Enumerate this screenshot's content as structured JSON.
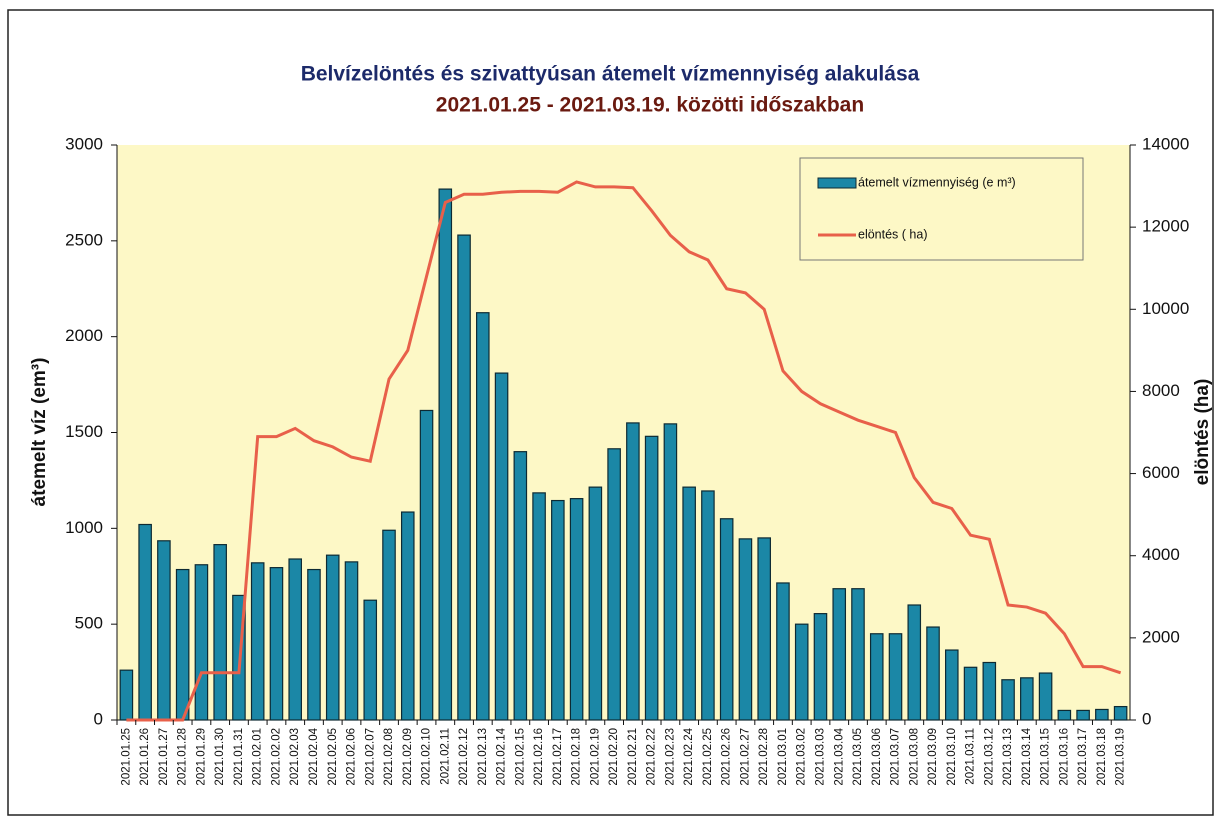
{
  "chart_data": {
    "type": "bar",
    "title": "Belvízelöntés és szivattyúsan átemelt vízmennyiség alakulása",
    "subtitle": "2021.01.25  - 2021.03.19.  közötti időszakban",
    "ylabel": "átemelt víz (em³)",
    "y2label": "elöntés (ha)",
    "categories": [
      "2021.01.25",
      "2021.01.26",
      "2021.01.27",
      "2021.01.28",
      "2021.01.29",
      "2021.01.30",
      "2021.01.31",
      "2021.02.01",
      "2021.02.02",
      "2021.02.03",
      "2021.02.04",
      "2021.02.05",
      "2021.02.06",
      "2021.02.07",
      "2021.02.08",
      "2021.02.09",
      "2021.02.10",
      "2021.02.11",
      "2021.02.12",
      "2021.02.13",
      "2021.02.14",
      "2021.02.15",
      "2021.02.16",
      "2021.02.17",
      "2021.02.18",
      "2021.02.19",
      "2021.02.20",
      "2021.02.21",
      "2021.02.22",
      "2021.02.23",
      "2021.02.24",
      "2021.02.25",
      "2021.02.26",
      "2021.02.27",
      "2021.02.28",
      "2021.03.01",
      "2021.03.02",
      "2021.03.03",
      "2021.03.04",
      "2021.03.05",
      "2021.03.06",
      "2021.03.07",
      "2021.03.08",
      "2021.03.09",
      "2021.03.10",
      "2021.03.11",
      "2021.03.12",
      "2021.03.13",
      "2021.03.14",
      "2021.03.15",
      "2021.03.16",
      "2021.03.17",
      "2021.03.18",
      "2021.03.19"
    ],
    "series": [
      {
        "name": "átemelt vízmennyiség (e m³)",
        "type": "bar",
        "color": "#1b87a6",
        "values": [
          260,
          1020,
          935,
          785,
          810,
          915,
          650,
          820,
          795,
          840,
          785,
          860,
          825,
          625,
          990,
          1085,
          1615,
          2770,
          2530,
          2125,
          1810,
          1400,
          1185,
          1145,
          1155,
          1215,
          1415,
          1550,
          1480,
          1545,
          1215,
          1195,
          1050,
          945,
          950,
          715,
          500,
          555,
          685,
          685,
          450,
          450,
          600,
          485,
          365,
          275,
          300,
          210,
          220,
          245,
          50,
          50,
          55,
          70
        ]
      },
      {
        "name": "elöntés ( ha)",
        "type": "line",
        "axis": "y2",
        "color": "#e8604a",
        "values": [
          0,
          0,
          0,
          0,
          1150,
          1150,
          1150,
          6900,
          6900,
          7100,
          6800,
          6650,
          6400,
          6300,
          8300,
          9000,
          10800,
          12600,
          12800,
          12800,
          12850,
          12870,
          12870,
          12850,
          13100,
          12980,
          12980,
          12960,
          12400,
          11800,
          11400,
          11200,
          10500,
          10400,
          10000,
          8500,
          8000,
          7700,
          7500,
          7300,
          7150,
          7000,
          5900,
          5300,
          5150,
          4500,
          4400,
          2800,
          2750,
          2600,
          2100,
          1300,
          1300,
          1150
        ]
      }
    ],
    "ylim": [
      0,
      3000
    ],
    "yticks": [
      0,
      500,
      1000,
      1500,
      2000,
      2500,
      3000
    ],
    "y2lim": [
      0,
      14000
    ],
    "y2ticks": [
      0,
      2000,
      4000,
      6000,
      8000,
      10000,
      12000,
      14000
    ],
    "legend": "upper right"
  }
}
